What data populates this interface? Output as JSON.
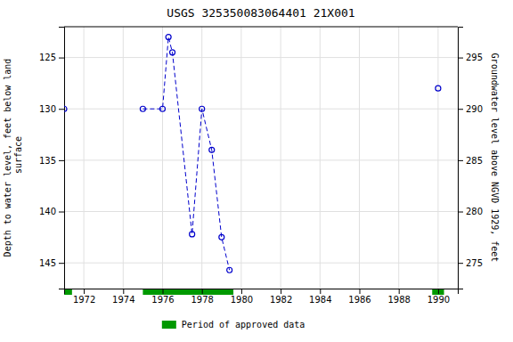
{
  "chart_data": {
    "type": "line",
    "title": "USGS 325350083064401 21X001",
    "y_label": "Depth to water level, feet below land\n surface",
    "y2_label": "Groundwater level above NGVD 1929, feet",
    "series": [
      {
        "type": "line",
        "color": "#0000cc",
        "marker": "circle",
        "line_style": "dashed",
        "x": [
          1975.0,
          1976.0,
          1976.3,
          1976.5,
          1977.5,
          1978.0,
          1978.5,
          1979.0,
          1979.4
        ],
        "values": [
          130.0,
          130.0,
          123.0,
          124.5,
          142.2,
          130.0,
          134.0,
          142.5,
          145.7
        ]
      },
      {
        "type": "scatter",
        "color": "#0000cc",
        "marker": "circle",
        "x": [
          1971.0,
          1990.0
        ],
        "values": [
          130.0,
          128.0
        ]
      }
    ],
    "bands": {
      "name": "Period of approved data",
      "color": "#009900",
      "ranges": [
        [
          1971.0,
          1971.4
        ],
        [
          1975.0,
          1979.6
        ],
        [
          1989.7,
          1990.3
        ]
      ]
    },
    "xlim": [
      1971,
      1991
    ],
    "xticks": [
      1972,
      1974,
      1976,
      1978,
      1980,
      1982,
      1984,
      1986,
      1988,
      1990
    ],
    "ylim": [
      147.5,
      122.0
    ],
    "yticks": [
      125,
      130,
      135,
      140,
      145
    ],
    "y2lim": [
      272.5,
      298.0
    ],
    "y2ticks": [
      295,
      290,
      285,
      280,
      275
    ],
    "grid": true,
    "legend": "bottom"
  }
}
